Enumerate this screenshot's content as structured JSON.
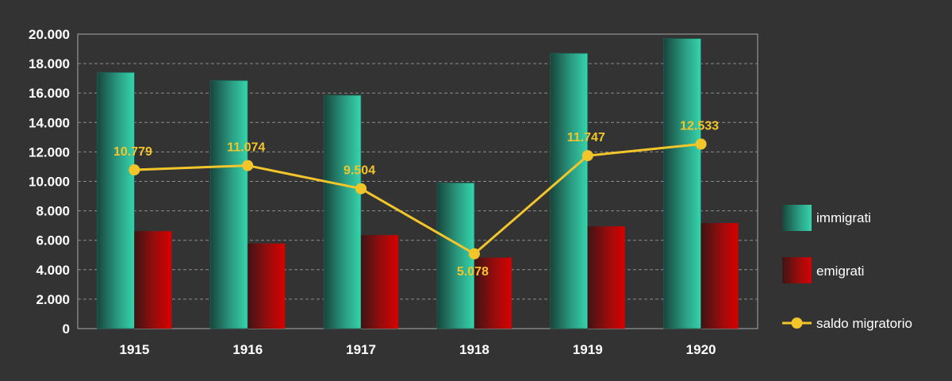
{
  "chart_data": {
    "type": "bar",
    "categories": [
      "1915",
      "1916",
      "1917",
      "1918",
      "1919",
      "1920"
    ],
    "series": [
      {
        "name": "immigrati",
        "type": "bar",
        "values": [
          17400,
          16850,
          15850,
          9900,
          18700,
          19700
        ],
        "color": "#2fbf9b"
      },
      {
        "name": "emigrati",
        "type": "bar",
        "values": [
          6620,
          5780,
          6350,
          4820,
          6950,
          7170
        ],
        "color": "#cc0000"
      },
      {
        "name": "saldo migratorio",
        "type": "line",
        "values": [
          10779,
          11074,
          9504,
          5078,
          11747,
          12533
        ],
        "labels": [
          "10.779",
          "11.074",
          "9.504",
          "5.078",
          "11.747",
          "12.533"
        ],
        "color": "#f2c62a"
      }
    ],
    "yticks": [
      "0",
      "2.000",
      "4.000",
      "6.000",
      "8.000",
      "10.000",
      "12.000",
      "14.000",
      "16.000",
      "18.000",
      "20.000"
    ],
    "ylim": [
      0,
      20000
    ],
    "grid": true,
    "legend_position": "right",
    "colors": {
      "background": "#333333",
      "grid": "#8c8c8c",
      "text": "#ffffff"
    }
  }
}
